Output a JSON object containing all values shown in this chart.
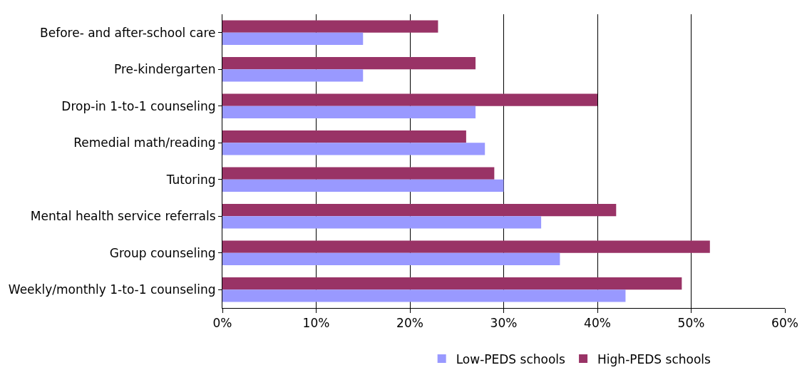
{
  "chart_data": {
    "type": "bar",
    "orientation": "horizontal",
    "categories": [
      "Before- and after-school care",
      "Pre-kindergarten",
      "Drop-in 1-to-1 counseling",
      "Remedial math/reading",
      "Tutoring",
      "Mental health service referrals",
      "Group counseling",
      "Weekly/monthly 1-to-1 counseling"
    ],
    "series": [
      {
        "name": "Low-PEDS schools",
        "color": "#9999ff",
        "values": [
          15,
          15,
          27,
          28,
          30,
          34,
          36,
          43
        ]
      },
      {
        "name": "High-PEDS schools",
        "color": "#993366",
        "values": [
          23,
          27,
          40,
          26,
          29,
          42,
          52,
          49
        ]
      }
    ],
    "xlim": [
      0,
      60
    ],
    "xticks": [
      {
        "value": 0,
        "label": "0%"
      },
      {
        "value": 10,
        "label": "10%"
      },
      {
        "value": 20,
        "label": "20%"
      },
      {
        "value": 30,
        "label": "30%"
      },
      {
        "value": 40,
        "label": "40%"
      },
      {
        "value": 50,
        "label": "50%"
      },
      {
        "value": 60,
        "label": "60%"
      }
    ],
    "grid": "x",
    "legend": "bottom"
  }
}
